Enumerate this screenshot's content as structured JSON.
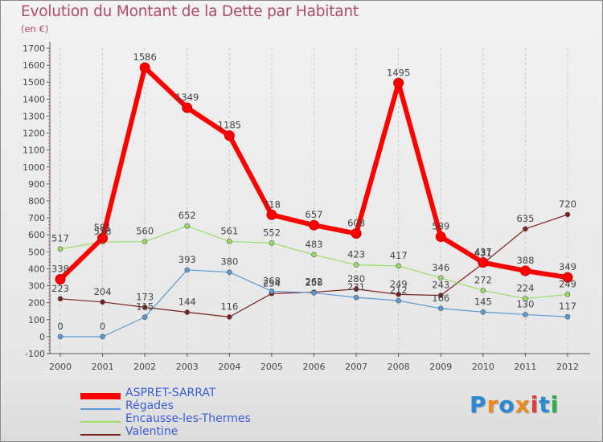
{
  "title": "Evolution du Montant de la Dette par Habitant",
  "unit": "(en €)",
  "logo": {
    "letters": [
      "P",
      "r",
      "o",
      "x",
      "i",
      "t",
      "i"
    ],
    "colors": [
      "#2a8ad6",
      "#f08a1c",
      "#2a8ad6",
      "#f08a1c",
      "#e23b3b",
      "#2a8ad6",
      "#2ab04a"
    ]
  },
  "chart_data": {
    "type": "line",
    "title": "Evolution du Montant de la Dette par Habitant",
    "subtitle": "(en €)",
    "x": [
      "2000",
      "2001",
      "2002",
      "2003",
      "2004",
      "2005",
      "2006",
      "2007",
      "2008",
      "2009",
      "2010",
      "2011",
      "2012"
    ],
    "ylim": [
      -100,
      1700
    ],
    "yticks": [
      -100,
      0,
      100,
      200,
      300,
      400,
      500,
      600,
      700,
      800,
      900,
      1000,
      1100,
      1200,
      1300,
      1400,
      1500,
      1600,
      1700
    ],
    "grid": "vertical dashed",
    "legend_position": "bottom-left",
    "series": [
      {
        "name": "ASPRET-SARRAT",
        "color": "#ff0000",
        "width": 6,
        "values": [
          338,
          581,
          1586,
          1349,
          1185,
          718,
          657,
          608,
          1495,
          589,
          437,
          388,
          349
        ],
        "labels": [
          "338",
          "581",
          "1586",
          "1349",
          "1185",
          "718",
          "657",
          "608",
          "1495",
          "589",
          "437",
          "388",
          "349"
        ]
      },
      {
        "name": "Régades",
        "color": "#5a9ad6",
        "width": 1.2,
        "values": [
          0,
          0,
          115,
          393,
          380,
          268,
          258,
          231,
          212,
          166,
          145,
          130,
          117
        ],
        "labels": [
          "0",
          "0",
          "115",
          "393",
          "380",
          "268",
          "258",
          "231",
          "212",
          "166",
          "145",
          "130",
          "117"
        ]
      },
      {
        "name": "Encausse-les-Thermes",
        "color": "#99dd66",
        "width": 1.2,
        "values": [
          517,
          558,
          560,
          652,
          561,
          552,
          483,
          423,
          417,
          346,
          272,
          224,
          249
        ],
        "labels": [
          "517",
          "558",
          "560",
          "652",
          "561",
          "552",
          "483",
          "423",
          "417",
          "346",
          "272",
          "224",
          "249"
        ]
      },
      {
        "name": "Valentine",
        "color": "#7a1f1f",
        "width": 1.2,
        "values": [
          223,
          204,
          173,
          144,
          116,
          254,
          262,
          280,
          249,
          243,
          431,
          635,
          720
        ],
        "labels": [
          "223",
          "204",
          "173",
          "144",
          "116",
          "254",
          "262",
          "280",
          "249",
          "243",
          "431",
          "635",
          "720"
        ]
      }
    ]
  }
}
